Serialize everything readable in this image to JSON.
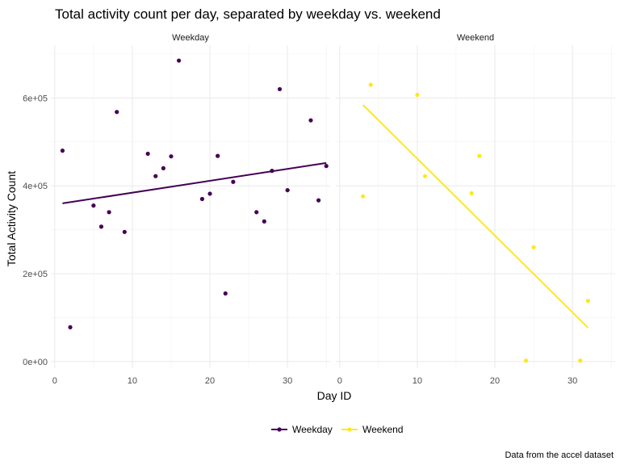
{
  "chart_data": {
    "type": "scatter",
    "title": "Total activity count per day, separated by weekday vs. weekend",
    "xlabel": "Day ID",
    "ylabel": "Total Activity Count",
    "caption": "Data from the accel dataset",
    "xlim": [
      -0.5,
      35.5
    ],
    "ylim": [
      -15000,
      720000
    ],
    "x_ticks": [
      0,
      10,
      20,
      30
    ],
    "x_tick_labels": [
      "0",
      "10",
      "20",
      "30"
    ],
    "y_ticks": [
      0,
      200000,
      400000,
      600000
    ],
    "y_tick_labels": [
      "0e+00",
      "2e+05",
      "4e+05",
      "6e+05"
    ],
    "grid": true,
    "legend_position": "bottom",
    "panels": [
      {
        "name": "Weekday",
        "color": "#440154",
        "points": [
          [
            1,
            480000
          ],
          [
            2,
            78000
          ],
          [
            5,
            355000
          ],
          [
            6,
            307000
          ],
          [
            7,
            340000
          ],
          [
            8,
            568000
          ],
          [
            9,
            295000
          ],
          [
            12,
            473000
          ],
          [
            13,
            422000
          ],
          [
            14,
            440000
          ],
          [
            15,
            467000
          ],
          [
            16,
            685000
          ],
          [
            19,
            370000
          ],
          [
            20,
            382000
          ],
          [
            21,
            468000
          ],
          [
            22,
            155000
          ],
          [
            23,
            409000
          ],
          [
            26,
            340000
          ],
          [
            27,
            319000
          ],
          [
            28,
            434000
          ],
          [
            29,
            620000
          ],
          [
            30,
            390000
          ],
          [
            33,
            549000
          ],
          [
            34,
            367000
          ],
          [
            35,
            445000
          ]
        ],
        "fit": [
          [
            1,
            360000
          ],
          [
            35,
            452000
          ]
        ]
      },
      {
        "name": "Weekend",
        "color": "#FDE725",
        "points": [
          [
            3,
            376000
          ],
          [
            4,
            630000
          ],
          [
            10,
            607000
          ],
          [
            11,
            422000
          ],
          [
            17,
            383000
          ],
          [
            18,
            468000
          ],
          [
            24,
            2000
          ],
          [
            25,
            260000
          ],
          [
            31,
            2000
          ],
          [
            32,
            138000
          ]
        ],
        "fit": [
          [
            3,
            584000
          ],
          [
            32,
            77000
          ]
        ]
      }
    ]
  }
}
